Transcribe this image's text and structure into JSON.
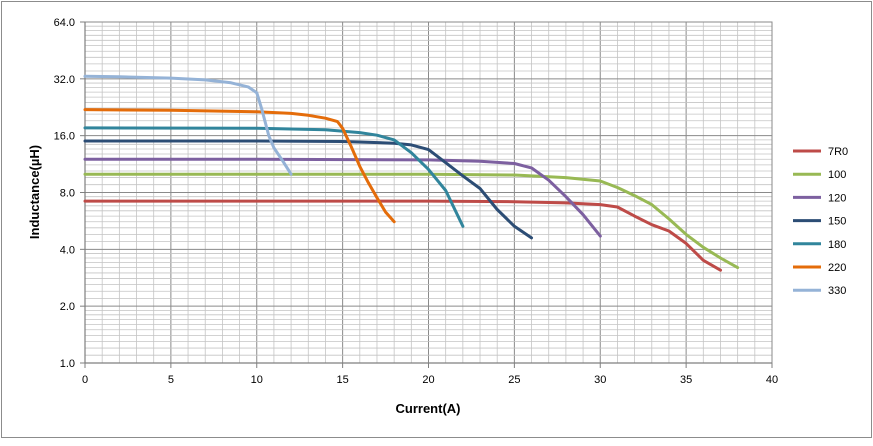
{
  "chart_data": {
    "type": "line",
    "title": "",
    "xlabel": "Current(A)",
    "ylabel": "Inductance(µH)",
    "xlim": [
      0,
      40
    ],
    "ylim": [
      1.0,
      64.0
    ],
    "yscale": "log2",
    "grid": true,
    "legend_position": "right",
    "x_ticks": [
      "0",
      "5",
      "10",
      "15",
      "20",
      "25",
      "30",
      "35",
      "40"
    ],
    "x_tick_values": [
      0,
      5,
      10,
      15,
      20,
      25,
      30,
      35,
      40
    ],
    "y_ticks": [
      "1.0",
      "2.0",
      "4.0",
      "8.0",
      "16.0",
      "32.0",
      "64.0"
    ],
    "y_tick_values": [
      1,
      2,
      4,
      8,
      16,
      32,
      64
    ],
    "series": [
      {
        "name": "7R0",
        "color": "#be4b48",
        "points": [
          [
            0,
            7.2
          ],
          [
            5,
            7.2
          ],
          [
            10,
            7.2
          ],
          [
            15,
            7.2
          ],
          [
            20,
            7.2
          ],
          [
            25,
            7.15
          ],
          [
            28,
            7.05
          ],
          [
            30,
            6.9
          ],
          [
            31,
            6.7
          ],
          [
            32,
            6.0
          ],
          [
            33,
            5.4
          ],
          [
            34,
            5.0
          ],
          [
            35,
            4.3
          ],
          [
            36,
            3.5
          ],
          [
            37,
            3.1
          ]
        ]
      },
      {
        "name": "100",
        "color": "#98b954",
        "points": [
          [
            0,
            10.0
          ],
          [
            10,
            10.0
          ],
          [
            20,
            10.0
          ],
          [
            25,
            9.9
          ],
          [
            28,
            9.6
          ],
          [
            30,
            9.2
          ],
          [
            31,
            8.5
          ],
          [
            32,
            7.7
          ],
          [
            33,
            6.9
          ],
          [
            34,
            5.8
          ],
          [
            35,
            4.8
          ],
          [
            36,
            4.1
          ],
          [
            37,
            3.6
          ],
          [
            38,
            3.2
          ]
        ]
      },
      {
        "name": "120",
        "color": "#7d60a0",
        "points": [
          [
            0,
            12.0
          ],
          [
            10,
            12.0
          ],
          [
            20,
            11.9
          ],
          [
            23,
            11.7
          ],
          [
            25,
            11.4
          ],
          [
            26,
            10.8
          ],
          [
            27,
            9.3
          ],
          [
            28,
            7.6
          ],
          [
            29,
            6.1
          ],
          [
            30,
            4.7
          ]
        ]
      },
      {
        "name": "150",
        "color": "#2c4d75",
        "points": [
          [
            0,
            15.0
          ],
          [
            10,
            15.0
          ],
          [
            15,
            14.9
          ],
          [
            18,
            14.6
          ],
          [
            19,
            14.3
          ],
          [
            20,
            13.5
          ],
          [
            21,
            11.5
          ],
          [
            22,
            9.8
          ],
          [
            23,
            8.4
          ],
          [
            24,
            6.5
          ],
          [
            25,
            5.3
          ],
          [
            26,
            4.6
          ]
        ]
      },
      {
        "name": "180",
        "color": "#31859c",
        "points": [
          [
            0,
            17.6
          ],
          [
            10,
            17.5
          ],
          [
            14,
            17.2
          ],
          [
            16,
            16.6
          ],
          [
            17,
            16.1
          ],
          [
            18,
            15.2
          ],
          [
            19,
            13.0
          ],
          [
            20,
            10.6
          ],
          [
            21,
            8.2
          ],
          [
            22,
            5.3
          ]
        ]
      },
      {
        "name": "220",
        "color": "#e46c0a",
        "points": [
          [
            0,
            22.0
          ],
          [
            5,
            21.8
          ],
          [
            10,
            21.4
          ],
          [
            12,
            21.0
          ],
          [
            13,
            20.5
          ],
          [
            14,
            19.8
          ],
          [
            14.7,
            19.0
          ],
          [
            15,
            17.5
          ],
          [
            15.5,
            14.0
          ],
          [
            16,
            11.0
          ],
          [
            16.5,
            9.0
          ],
          [
            17,
            7.5
          ],
          [
            17.5,
            6.3
          ],
          [
            18,
            5.6
          ]
        ]
      },
      {
        "name": "330",
        "color": "#95b3d7",
        "points": [
          [
            0,
            33.0
          ],
          [
            2,
            32.8
          ],
          [
            5,
            32.3
          ],
          [
            7,
            31.6
          ],
          [
            8.5,
            30.5
          ],
          [
            9.5,
            29.0
          ],
          [
            10,
            27.0
          ],
          [
            10.3,
            22.0
          ],
          [
            10.7,
            16.0
          ],
          [
            11,
            13.8
          ],
          [
            11.5,
            11.8
          ],
          [
            12,
            10.0
          ]
        ]
      }
    ]
  }
}
